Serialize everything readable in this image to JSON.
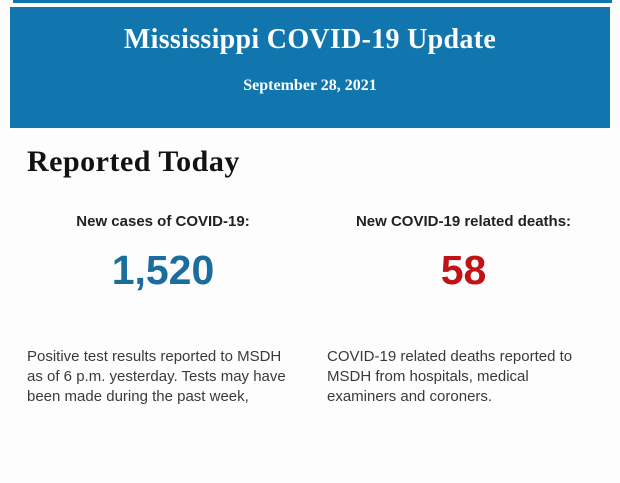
{
  "colors": {
    "brand_blue": "#1076ad",
    "cases_blue": "#1b6d9d",
    "deaths_red": "#c11218",
    "heading_black": "#121212",
    "body_text": "#3a3a3a"
  },
  "header": {
    "title": "Mississippi COVID-19 Update",
    "date": "September 28, 2021"
  },
  "section": {
    "title": "Reported Today"
  },
  "stats": {
    "cases": {
      "label": "New cases of COVID-19:",
      "value": "1,520",
      "description": "Positive test results reported to MSDH as of 6 p.m. yesterday. Tests may have been made during the past week,"
    },
    "deaths": {
      "label": "New COVID-19 related deaths:",
      "value": "58",
      "description": "COVID-19 related deaths reported to MSDH from hospitals, medical examiners and coroners."
    }
  }
}
